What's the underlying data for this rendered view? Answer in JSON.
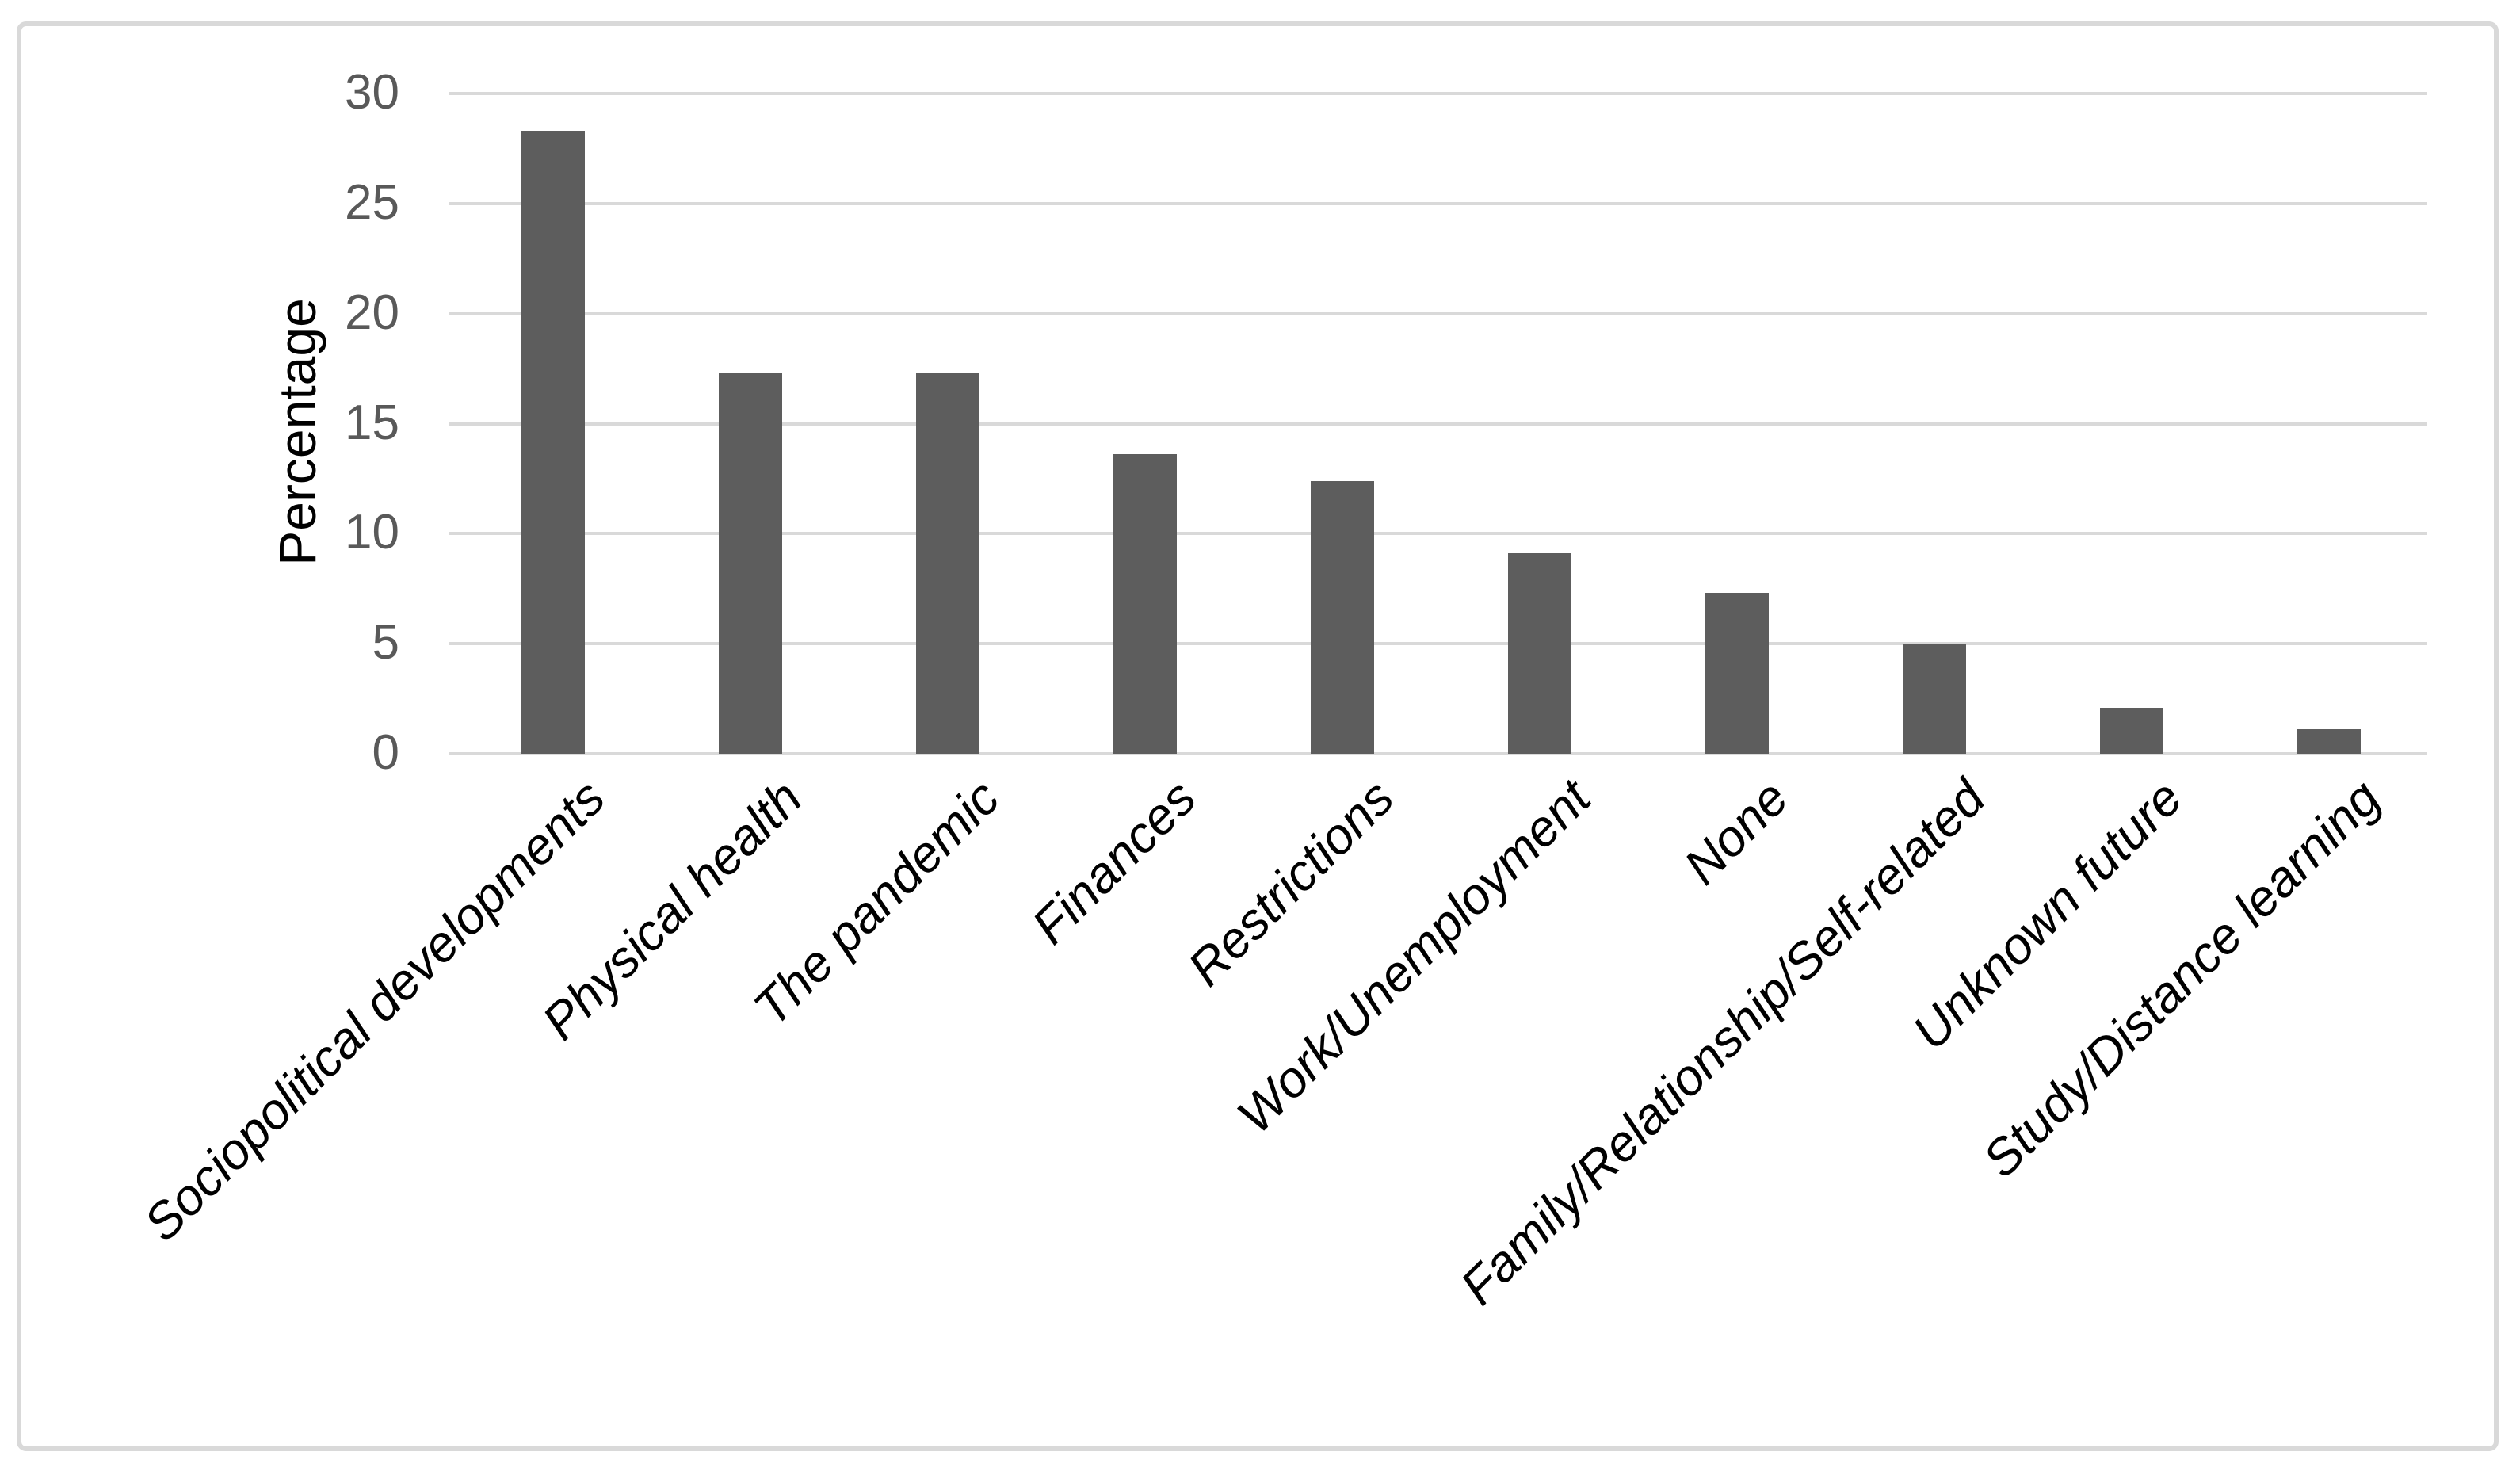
{
  "chart": {
    "background_color": "#ffffff",
    "frame_border_color": "#d9d9d9"
  },
  "chart_data": {
    "type": "bar",
    "title": "",
    "categories": [
      "Sociopolitical developments",
      "Physical health",
      "The pandemic",
      "Finances",
      "Restrictions",
      "Work/Unemployment",
      "None",
      "Family/Relationship/Self-related",
      "Unknown future",
      "Study/Distance learning"
    ],
    "values": [
      28.3,
      17.3,
      17.3,
      13.6,
      12.4,
      9.1,
      7.3,
      5.0,
      2.1,
      1.1
    ],
    "xlabel": "",
    "ylabel": "Percentage",
    "ylim": [
      0,
      30
    ],
    "yticks": [
      0,
      5,
      10,
      15,
      20,
      25,
      30
    ],
    "grid": "horizontal",
    "legend": "none",
    "bar_color": "#5d5d5d",
    "gridline_color": "#d9d9d9",
    "tick_label_color": "#595959",
    "axis_title_color": "#000000",
    "category_label_color": "#000000",
    "category_label_style": "italic",
    "category_label_rotation_deg": -45
  }
}
